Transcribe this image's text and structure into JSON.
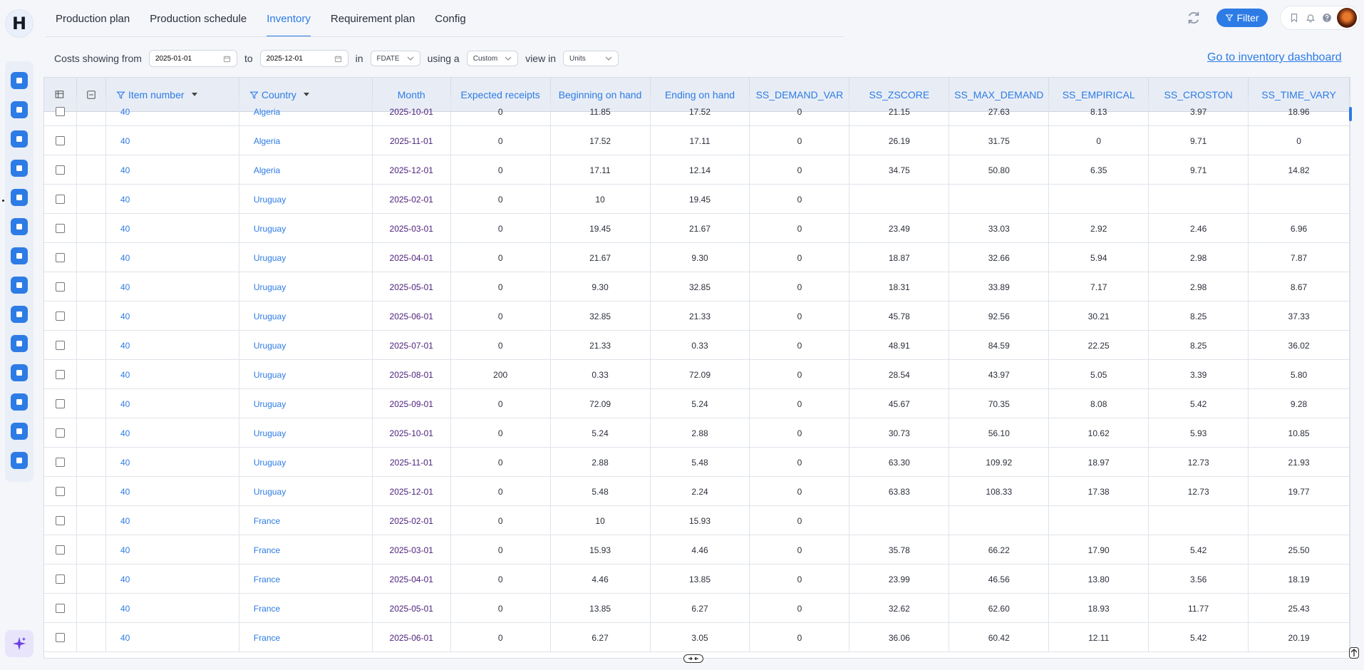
{
  "app": {
    "logo_letter": "H"
  },
  "nav": {
    "tabs": [
      {
        "label": "Production plan"
      },
      {
        "label": "Production schedule"
      },
      {
        "label": "Inventory",
        "active": true
      },
      {
        "label": "Requirement plan"
      },
      {
        "label": "Config"
      }
    ],
    "filter_label": "Filter"
  },
  "controls": {
    "costs_from_label": "Costs showing from",
    "date_from": "2025-01-01",
    "to_label": "to",
    "date_to": "2025-12-01",
    "in_label": "in",
    "date_field": "FDATE",
    "using_label": "using a",
    "mode": "Custom",
    "view_label": "view in",
    "unit": "Units",
    "dashboard_link": "Go to inventory dashboard"
  },
  "table": {
    "headers": [
      "Item number",
      "Country",
      "Month",
      "Expected receipts",
      "Beginning on hand",
      "Ending on hand",
      "SS_DEMAND_VAR",
      "SS_ZSCORE",
      "SS_MAX_DEMAND",
      "SS_EMPIRICAL",
      "SS_CROSTON",
      "SS_TIME_VARY"
    ],
    "rows": [
      [
        "40",
        "Algeria",
        "2025-10-01",
        "0",
        "11.85",
        "17.52",
        "0",
        "21.15",
        "27.63",
        "8.13",
        "3.97",
        "18.96"
      ],
      [
        "40",
        "Algeria",
        "2025-11-01",
        "0",
        "17.52",
        "17.11",
        "0",
        "26.19",
        "31.75",
        "0",
        "9.71",
        "0"
      ],
      [
        "40",
        "Algeria",
        "2025-12-01",
        "0",
        "17.11",
        "12.14",
        "0",
        "34.75",
        "50.80",
        "6.35",
        "9.71",
        "14.82"
      ],
      [
        "40",
        "Uruguay",
        "2025-02-01",
        "0",
        "10",
        "19.45",
        "0",
        "",
        "",
        "",
        "",
        ""
      ],
      [
        "40",
        "Uruguay",
        "2025-03-01",
        "0",
        "19.45",
        "21.67",
        "0",
        "23.49",
        "33.03",
        "2.92",
        "2.46",
        "6.96"
      ],
      [
        "40",
        "Uruguay",
        "2025-04-01",
        "0",
        "21.67",
        "9.30",
        "0",
        "18.87",
        "32.66",
        "5.94",
        "2.98",
        "7.87"
      ],
      [
        "40",
        "Uruguay",
        "2025-05-01",
        "0",
        "9.30",
        "32.85",
        "0",
        "18.31",
        "33.89",
        "7.17",
        "2.98",
        "8.67"
      ],
      [
        "40",
        "Uruguay",
        "2025-06-01",
        "0",
        "32.85",
        "21.33",
        "0",
        "45.78",
        "92.56",
        "30.21",
        "8.25",
        "37.33"
      ],
      [
        "40",
        "Uruguay",
        "2025-07-01",
        "0",
        "21.33",
        "0.33",
        "0",
        "48.91",
        "84.59",
        "22.25",
        "8.25",
        "36.02"
      ],
      [
        "40",
        "Uruguay",
        "2025-08-01",
        "200",
        "0.33",
        "72.09",
        "0",
        "28.54",
        "43.97",
        "5.05",
        "3.39",
        "5.80"
      ],
      [
        "40",
        "Uruguay",
        "2025-09-01",
        "0",
        "72.09",
        "5.24",
        "0",
        "45.67",
        "70.35",
        "8.08",
        "5.42",
        "9.28"
      ],
      [
        "40",
        "Uruguay",
        "2025-10-01",
        "0",
        "5.24",
        "2.88",
        "0",
        "30.73",
        "56.10",
        "10.62",
        "5.93",
        "10.85"
      ],
      [
        "40",
        "Uruguay",
        "2025-11-01",
        "0",
        "2.88",
        "5.48",
        "0",
        "63.30",
        "109.92",
        "18.97",
        "12.73",
        "21.93"
      ],
      [
        "40",
        "Uruguay",
        "2025-12-01",
        "0",
        "5.48",
        "2.24",
        "0",
        "63.83",
        "108.33",
        "17.38",
        "12.73",
        "19.77"
      ],
      [
        "40",
        "France",
        "2025-02-01",
        "0",
        "10",
        "15.93",
        "0",
        "",
        "",
        "",
        "",
        ""
      ],
      [
        "40",
        "France",
        "2025-03-01",
        "0",
        "15.93",
        "4.46",
        "0",
        "35.78",
        "66.22",
        "17.90",
        "5.42",
        "25.50"
      ],
      [
        "40",
        "France",
        "2025-04-01",
        "0",
        "4.46",
        "13.85",
        "0",
        "23.99",
        "46.56",
        "13.80",
        "3.56",
        "18.19"
      ],
      [
        "40",
        "France",
        "2025-05-01",
        "0",
        "13.85",
        "6.27",
        "0",
        "32.62",
        "62.60",
        "18.93",
        "11.77",
        "25.43"
      ],
      [
        "40",
        "France",
        "2025-06-01",
        "0",
        "6.27",
        "3.05",
        "0",
        "36.06",
        "60.42",
        "12.11",
        "5.42",
        "20.19"
      ]
    ]
  },
  "sidebar": {
    "icons": [
      "home-icon",
      "bell-icon",
      "dashboard-icon",
      "chart-icon",
      "factory-icon",
      "tag-icon",
      "hand-icon",
      "report-icon",
      "help-icon",
      "hierarchy-icon",
      "settings-icon",
      "mail-icon",
      "stack-icon",
      "layers-icon"
    ]
  },
  "colors": {
    "accent": "#2d7be5",
    "month_text": "#4a1f7a"
  }
}
